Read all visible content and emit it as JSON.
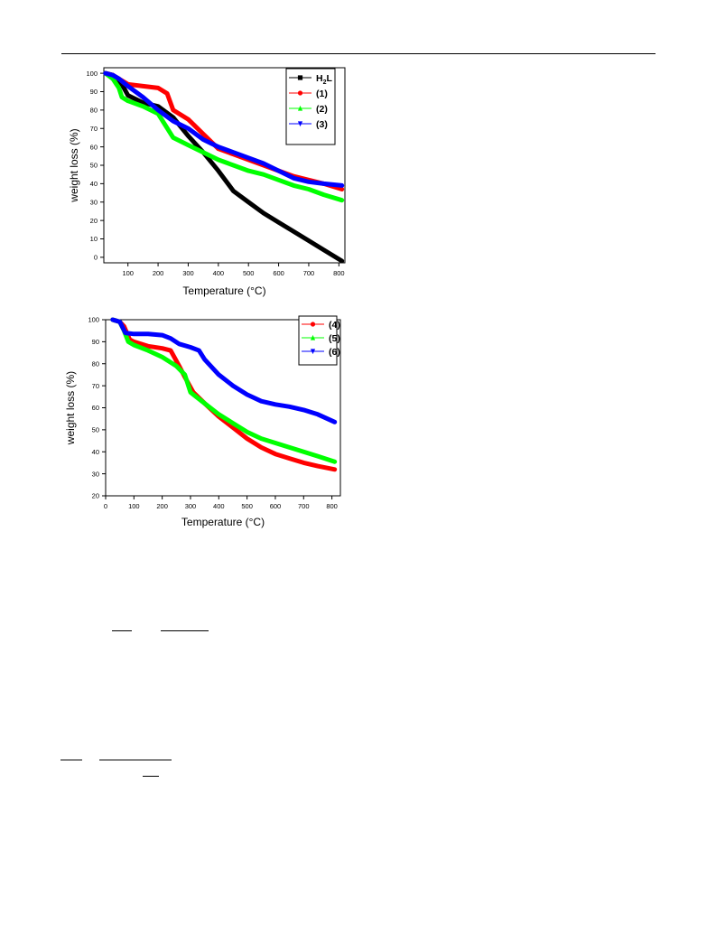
{
  "chart_data": [
    {
      "type": "line",
      "xlabel": "Temperature (°C)",
      "ylabel": "weight loss (%)",
      "xlim": [
        20,
        820
      ],
      "ylim": [
        -3,
        103
      ],
      "x_ticks": [
        100,
        200,
        300,
        400,
        500,
        600,
        700,
        800
      ],
      "y_ticks": [
        0,
        10,
        20,
        30,
        40,
        50,
        60,
        70,
        80,
        90,
        100
      ],
      "legend_position": "top-right",
      "series": [
        {
          "name": "H",
          "name_sub": "2",
          "name_suffix": "L",
          "color": "#000000",
          "marker": "square",
          "x": [
            25,
            50,
            80,
            100,
            150,
            200,
            250,
            300,
            350,
            400,
            450,
            500,
            550,
            600,
            650,
            700,
            750,
            810
          ],
          "y": [
            100,
            99,
            94,
            88,
            84,
            82,
            76,
            66,
            57,
            47,
            36,
            30,
            24,
            19,
            14,
            9,
            4,
            -2
          ]
        },
        {
          "name": "(1)",
          "color": "#ff0000",
          "marker": "circle",
          "x": [
            25,
            50,
            80,
            100,
            150,
            200,
            230,
            250,
            300,
            350,
            400,
            450,
            500,
            550,
            600,
            650,
            700,
            750,
            810
          ],
          "y": [
            100,
            99,
            96,
            94,
            93,
            92,
            89,
            80,
            75,
            67,
            59,
            56,
            53,
            50,
            47,
            44,
            42,
            40,
            37
          ]
        },
        {
          "name": "(2)",
          "color": "#00ff00",
          "marker": "triangle-up",
          "x": [
            25,
            50,
            70,
            80,
            100,
            150,
            200,
            250,
            300,
            350,
            400,
            450,
            500,
            550,
            600,
            650,
            700,
            750,
            810
          ],
          "y": [
            100,
            97,
            92,
            87,
            85,
            82,
            78,
            65,
            61,
            57,
            53,
            50,
            47,
            45,
            42,
            39,
            37,
            34,
            31
          ]
        },
        {
          "name": "(3)",
          "color": "#0000ff",
          "marker": "triangle-down",
          "x": [
            25,
            50,
            70,
            100,
            150,
            200,
            250,
            300,
            350,
            400,
            450,
            500,
            550,
            600,
            650,
            700,
            750,
            810
          ],
          "y": [
            100,
            99,
            97,
            93,
            87,
            80,
            74,
            70,
            64,
            60,
            57,
            54,
            51,
            47,
            43,
            41,
            40,
            39
          ]
        }
      ]
    },
    {
      "type": "line",
      "xlabel": "Temperature (°C)",
      "ylabel": "weight loss (%)",
      "xlim": [
        0,
        830
      ],
      "ylim": [
        20,
        100
      ],
      "x_ticks": [
        0,
        100,
        200,
        300,
        400,
        500,
        600,
        700,
        800
      ],
      "y_ticks": [
        20,
        30,
        40,
        50,
        60,
        70,
        80,
        90,
        100
      ],
      "legend_position": "top-right",
      "series": [
        {
          "name": "(4)",
          "color": "#ff0000",
          "marker": "circle",
          "x": [
            25,
            50,
            65,
            75,
            85,
            100,
            150,
            200,
            230,
            260,
            280,
            310,
            350,
            400,
            450,
            500,
            550,
            600,
            650,
            700,
            750,
            810
          ],
          "y": [
            100,
            99,
            97,
            94,
            91,
            90,
            88,
            87,
            86,
            79,
            74,
            67,
            62,
            56,
            51,
            46,
            42,
            39,
            37,
            35,
            33.5,
            32
          ]
        },
        {
          "name": "(5)",
          "color": "#00ff00",
          "marker": "triangle-up",
          "x": [
            25,
            50,
            65,
            80,
            100,
            150,
            200,
            250,
            280,
            300,
            350,
            400,
            450,
            500,
            550,
            600,
            650,
            700,
            750,
            810
          ],
          "y": [
            100,
            99,
            95,
            90,
            88.5,
            86,
            83,
            79,
            75,
            67,
            62,
            57,
            53,
            49,
            46,
            44,
            42,
            40,
            38,
            35.5
          ]
        },
        {
          "name": "(6)",
          "color": "#0000ff",
          "marker": "triangle-down",
          "x": [
            25,
            50,
            70,
            100,
            150,
            200,
            230,
            260,
            300,
            330,
            350,
            400,
            450,
            500,
            550,
            600,
            650,
            700,
            750,
            810
          ],
          "y": [
            100,
            99,
            94,
            93.5,
            93.5,
            93,
            91.5,
            89,
            87.5,
            86,
            82,
            75,
            70,
            66,
            63,
            61.5,
            60.5,
            59,
            57,
            53.5
          ]
        }
      ]
    }
  ]
}
